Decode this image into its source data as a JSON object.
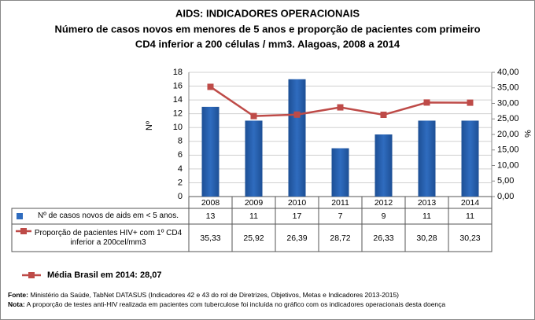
{
  "chart_data": {
    "type": "bar_line",
    "title": "AIDS: INDICADORES OPERACIONAIS",
    "subtitle_lines": [
      "Número de casos novos em menores de 5 anos e proporção de pacientes com primeiro",
      "CD4 inferior a 200 células / mm3. Alagoas, 2008 a 2014"
    ],
    "y_label": "Nº",
    "y2_label": "%",
    "categories": [
      "2008",
      "2009",
      "2010",
      "2011",
      "2012",
      "2013",
      "2014"
    ],
    "series": [
      {
        "name": "Nº de casos novos de aids em < 5 anos.",
        "color": "#2f6cbf",
        "values": [
          13,
          11,
          17,
          7,
          9,
          11,
          11
        ]
      },
      {
        "name": "Proporção de pacientes HIV+ com 1º CD4 inferior a 200cel/mm3",
        "color": "#be4b48",
        "axis": "y2",
        "values": [
          35.33,
          25.92,
          26.39,
          28.72,
          26.33,
          30.28,
          30.23
        ],
        "value_labels": [
          "35,33",
          "25,92",
          "26,39",
          "28,72",
          "26,33",
          "30,28",
          "30,23"
        ]
      }
    ],
    "ylim": [
      0,
      18
    ],
    "yticks": [
      0,
      2,
      4,
      6,
      8,
      10,
      12,
      14,
      16,
      18
    ],
    "y2lim": [
      0,
      40
    ],
    "y2ticks": [
      {
        "value": 0,
        "label": "0,00"
      },
      {
        "value": 5,
        "label": "5,00"
      },
      {
        "value": 10,
        "label": "10,00"
      },
      {
        "value": 15,
        "label": "15,00"
      },
      {
        "value": 20,
        "label": "20,00"
      },
      {
        "value": 25,
        "label": "25,00"
      },
      {
        "value": 30,
        "label": "30,00"
      },
      {
        "value": 35,
        "label": "35,00"
      },
      {
        "value": 40,
        "label": "40,00"
      }
    ],
    "grid": true,
    "annotation": "Média Brasil em 2014: 28,07",
    "source_label": "Fonte:",
    "source_text": " Ministério da Saúde, TabNet DATASUS (Indicadores 42 e 43 do rol de Diretrizes, Objetivos, Metas e Indicadores 2013-2015)",
    "note_label": "Nota:",
    "note_text": " A proporção de testes anti-HIV realizada em pacientes com tuberculose foi incluída no gráfico com os indicadores operacionais desta doença"
  }
}
